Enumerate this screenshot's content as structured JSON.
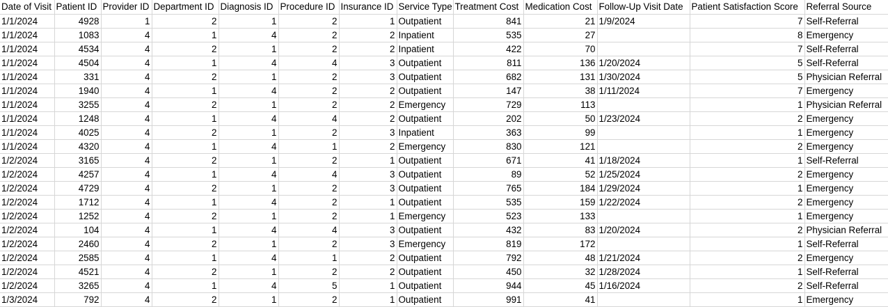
{
  "columns": [
    "Date of Visit",
    "Patient ID",
    "Provider ID",
    "Department ID",
    "Diagnosis ID",
    "Procedure ID",
    "Insurance ID",
    "Service Type",
    "Treatment Cost",
    "Medication Cost",
    "Follow-Up Visit Date",
    "Patient Satisfaction Score",
    "Referral Source"
  ],
  "rows": [
    [
      "1/1/2024",
      "4928",
      "1",
      "2",
      "1",
      "2",
      "1",
      "Outpatient",
      "841",
      "21",
      "1/9/2024",
      "7",
      "Self-Referral"
    ],
    [
      "1/1/2024",
      "1083",
      "4",
      "1",
      "4",
      "2",
      "2",
      "Inpatient",
      "535",
      "27",
      "",
      "8",
      "Emergency"
    ],
    [
      "1/1/2024",
      "4534",
      "4",
      "2",
      "1",
      "2",
      "2",
      "Inpatient",
      "422",
      "70",
      "",
      "7",
      "Self-Referral"
    ],
    [
      "1/1/2024",
      "4504",
      "4",
      "1",
      "4",
      "4",
      "3",
      "Outpatient",
      "811",
      "136",
      "1/20/2024",
      "5",
      "Self-Referral"
    ],
    [
      "1/1/2024",
      "331",
      "4",
      "2",
      "1",
      "2",
      "3",
      "Outpatient",
      "682",
      "131",
      "1/30/2024",
      "5",
      "Physician Referral"
    ],
    [
      "1/1/2024",
      "1940",
      "4",
      "1",
      "4",
      "2",
      "2",
      "Outpatient",
      "147",
      "38",
      "1/11/2024",
      "7",
      "Emergency"
    ],
    [
      "1/1/2024",
      "3255",
      "4",
      "2",
      "1",
      "2",
      "2",
      "Emergency",
      "729",
      "113",
      "",
      "1",
      "Physician Referral"
    ],
    [
      "1/1/2024",
      "1248",
      "4",
      "1",
      "4",
      "4",
      "2",
      "Outpatient",
      "202",
      "50",
      "1/23/2024",
      "2",
      "Emergency"
    ],
    [
      "1/1/2024",
      "4025",
      "4",
      "2",
      "1",
      "2",
      "3",
      "Inpatient",
      "363",
      "99",
      "",
      "1",
      "Emergency"
    ],
    [
      "1/1/2024",
      "4320",
      "4",
      "1",
      "4",
      "1",
      "2",
      "Emergency",
      "830",
      "121",
      "",
      "2",
      "Emergency"
    ],
    [
      "1/2/2024",
      "3165",
      "4",
      "2",
      "1",
      "2",
      "1",
      "Outpatient",
      "671",
      "41",
      "1/18/2024",
      "1",
      "Self-Referral"
    ],
    [
      "1/2/2024",
      "4257",
      "4",
      "1",
      "4",
      "4",
      "3",
      "Outpatient",
      "89",
      "52",
      "1/25/2024",
      "2",
      "Emergency"
    ],
    [
      "1/2/2024",
      "4729",
      "4",
      "2",
      "1",
      "2",
      "3",
      "Outpatient",
      "765",
      "184",
      "1/29/2024",
      "1",
      "Emergency"
    ],
    [
      "1/2/2024",
      "1712",
      "4",
      "1",
      "4",
      "2",
      "1",
      "Outpatient",
      "535",
      "159",
      "1/22/2024",
      "2",
      "Emergency"
    ],
    [
      "1/2/2024",
      "1252",
      "4",
      "2",
      "1",
      "2",
      "1",
      "Emergency",
      "523",
      "133",
      "",
      "1",
      "Emergency"
    ],
    [
      "1/2/2024",
      "104",
      "4",
      "1",
      "4",
      "4",
      "3",
      "Outpatient",
      "432",
      "83",
      "1/20/2024",
      "2",
      "Physician Referral"
    ],
    [
      "1/2/2024",
      "2460",
      "4",
      "2",
      "1",
      "2",
      "3",
      "Emergency",
      "819",
      "172",
      "",
      "1",
      "Self-Referral"
    ],
    [
      "1/2/2024",
      "2585",
      "4",
      "1",
      "4",
      "1",
      "2",
      "Outpatient",
      "792",
      "48",
      "1/21/2024",
      "2",
      "Emergency"
    ],
    [
      "1/2/2024",
      "4521",
      "4",
      "2",
      "1",
      "2",
      "2",
      "Outpatient",
      "450",
      "32",
      "1/28/2024",
      "1",
      "Self-Referral"
    ],
    [
      "1/2/2024",
      "3265",
      "4",
      "1",
      "4",
      "5",
      "1",
      "Outpatient",
      "944",
      "45",
      "1/16/2024",
      "2",
      "Self-Referral"
    ],
    [
      "1/3/2024",
      "792",
      "4",
      "2",
      "1",
      "2",
      "1",
      "Outpatient",
      "991",
      "41",
      "",
      "1",
      "Emergency"
    ]
  ]
}
